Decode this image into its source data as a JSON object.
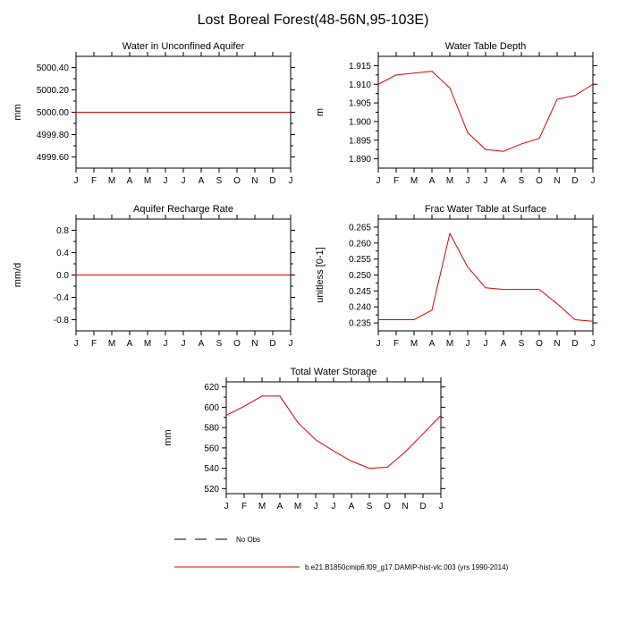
{
  "page_title": "Lost Boreal Forest(48-56N,95-103E)",
  "line_color": "#dd0000",
  "axis_color": "#000000",
  "legend": [
    {
      "label": "No Obs",
      "color": "#000000",
      "style": "dashed"
    },
    {
      "label": "b.e21.B1850cmip6.f09_g17.DAMIP-hist-vlc.003 (yrs 1990-2014)",
      "color": "#dd0000",
      "style": "solid"
    }
  ],
  "chart_data": [
    {
      "type": "line",
      "title": "Water in Unconfined Aquifer",
      "ylabel": "mm",
      "xlabel": "",
      "categories": [
        "J",
        "F",
        "M",
        "A",
        "M",
        "J",
        "J",
        "A",
        "S",
        "O",
        "N",
        "D",
        "J"
      ],
      "values": [
        5000.0,
        5000.0,
        5000.0,
        5000.0,
        5000.0,
        5000.0,
        5000.0,
        5000.0,
        5000.0,
        5000.0,
        5000.0,
        5000.0,
        5000.0
      ],
      "yticks": [
        4999.6,
        4999.8,
        5000.0,
        5000.2,
        5000.4
      ],
      "ytick_labels": [
        "4999.60",
        "4999.80",
        "5000.00",
        "5000.20",
        "5000.40"
      ],
      "ylim": [
        4999.5,
        5000.5
      ],
      "grid": false,
      "legend_position": "none"
    },
    {
      "type": "line",
      "title": "Water Table Depth",
      "ylabel": "m",
      "xlabel": "",
      "categories": [
        "J",
        "F",
        "M",
        "A",
        "M",
        "J",
        "J",
        "A",
        "S",
        "O",
        "N",
        "D",
        "J"
      ],
      "values": [
        1.91,
        1.9125,
        1.913,
        1.9135,
        1.909,
        1.897,
        1.8925,
        1.892,
        1.894,
        1.8955,
        1.906,
        1.907,
        1.91
      ],
      "yticks": [
        1.89,
        1.895,
        1.9,
        1.905,
        1.91,
        1.915
      ],
      "ytick_labels": [
        "1.890",
        "1.895",
        "1.900",
        "1.905",
        "1.910",
        "1.915"
      ],
      "ylim": [
        1.8875,
        1.9175
      ],
      "grid": false,
      "legend_position": "none"
    },
    {
      "type": "line",
      "title": "Aquifer Recharge Rate",
      "ylabel": "mm/d",
      "xlabel": "",
      "categories": [
        "J",
        "F",
        "M",
        "A",
        "M",
        "J",
        "J",
        "A",
        "S",
        "O",
        "N",
        "D",
        "J"
      ],
      "values": [
        0.0,
        0.0,
        0.0,
        0.0,
        0.0,
        0.0,
        0.0,
        0.0,
        0.0,
        0.0,
        0.0,
        0.0,
        0.0
      ],
      "yticks": [
        -0.8,
        -0.4,
        0.0,
        0.4,
        0.8
      ],
      "ytick_labels": [
        "-0.8",
        "-0.4",
        "0.0",
        "0.4",
        "0.8"
      ],
      "ylim": [
        -1.0,
        1.0
      ],
      "grid": false,
      "legend_position": "none"
    },
    {
      "type": "line",
      "title": "Frac Water Table at Surface",
      "ylabel": "unitless [0-1]",
      "xlabel": "",
      "categories": [
        "J",
        "F",
        "M",
        "A",
        "M",
        "J",
        "J",
        "A",
        "S",
        "O",
        "N",
        "D",
        "J"
      ],
      "values": [
        0.236,
        0.236,
        0.236,
        0.239,
        0.263,
        0.2525,
        0.246,
        0.2455,
        0.2455,
        0.2455,
        0.241,
        0.236,
        0.2355
      ],
      "yticks": [
        0.235,
        0.24,
        0.245,
        0.25,
        0.255,
        0.26,
        0.265
      ],
      "ytick_labels": [
        "0.235",
        "0.240",
        "0.245",
        "0.250",
        "0.255",
        "0.260",
        "0.265"
      ],
      "ylim": [
        0.2325,
        0.2675
      ],
      "grid": false,
      "legend_position": "none"
    },
    {
      "type": "line",
      "title": "Total Water Storage",
      "ylabel": "mm",
      "xlabel": "",
      "categories": [
        "J",
        "F",
        "M",
        "A",
        "M",
        "J",
        "J",
        "A",
        "S",
        "O",
        "N",
        "D",
        "J"
      ],
      "values": [
        592,
        601,
        611,
        611,
        585,
        568,
        557,
        547,
        540,
        541,
        556,
        574,
        592
      ],
      "yticks": [
        520,
        540,
        560,
        580,
        600,
        620
      ],
      "ytick_labels": [
        "520",
        "540",
        "560",
        "580",
        "600",
        "620"
      ],
      "ylim": [
        515,
        625
      ],
      "grid": false,
      "legend_position": "none"
    }
  ]
}
